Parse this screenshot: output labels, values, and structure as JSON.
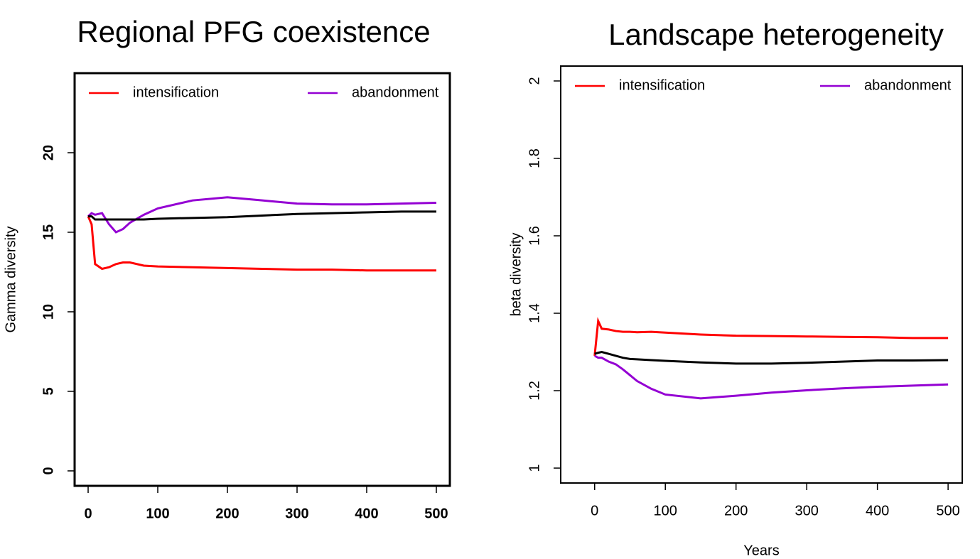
{
  "chart_data": [
    {
      "type": "line",
      "title": "Regional PFG coexistence",
      "y_label": "Gamma diversity",
      "x": [
        0,
        5,
        10,
        20,
        30,
        40,
        50,
        60,
        80,
        100,
        150,
        200,
        250,
        300,
        350,
        400,
        450,
        500
      ],
      "series": [
        {
          "name": "intensification",
          "color": "#ff0000",
          "values": [
            16,
            15.5,
            13,
            12.7,
            12.8,
            13,
            13.1,
            13.1,
            12.9,
            12.85,
            12.8,
            12.75,
            12.7,
            12.65,
            12.65,
            12.6,
            12.6,
            12.6
          ]
        },
        {
          "name": "abandonment",
          "color": "#9400d3",
          "values": [
            16,
            16.2,
            16.1,
            16.2,
            15.5,
            15,
            15.2,
            15.6,
            16.1,
            16.5,
            17,
            17.2,
            17,
            16.8,
            16.75,
            16.75,
            16.8,
            16.85
          ]
        },
        {
          "color": "#000000",
          "values": [
            16,
            16,
            15.8,
            15.8,
            15.8,
            15.8,
            15.8,
            15.8,
            15.8,
            15.85,
            15.9,
            15.95,
            16.05,
            16.15,
            16.2,
            16.25,
            16.3,
            16.3
          ]
        }
      ],
      "xlim": [
        -19.4,
        519.4
      ],
      "xticks": [
        0,
        100,
        200,
        300,
        400,
        500
      ],
      "ylim": [
        -0.94,
        25
      ],
      "yticks": [
        0,
        5,
        10,
        15,
        20
      ]
    },
    {
      "type": "line",
      "title": "Landscape heterogeneity",
      "y_label": "beta diversity",
      "x_label": "Years",
      "x": [
        0,
        5,
        10,
        20,
        30,
        40,
        50,
        60,
        80,
        100,
        150,
        200,
        250,
        300,
        350,
        400,
        450,
        500
      ],
      "series": [
        {
          "name": "intensification",
          "color": "#ff0000",
          "values": [
            1.29,
            1.38,
            1.36,
            1.358,
            1.354,
            1.352,
            1.352,
            1.351,
            1.352,
            1.35,
            1.345,
            1.342,
            1.341,
            1.34,
            1.339,
            1.338,
            1.336,
            1.336
          ]
        },
        {
          "name": "abandonment",
          "color": "#9400d3",
          "values": [
            1.29,
            1.285,
            1.285,
            1.275,
            1.268,
            1.255,
            1.24,
            1.225,
            1.205,
            1.19,
            1.18,
            1.187,
            1.195,
            1.201,
            1.206,
            1.21,
            1.213,
            1.216
          ]
        },
        {
          "color": "#000000",
          "values": [
            1.295,
            1.298,
            1.3,
            1.295,
            1.29,
            1.285,
            1.282,
            1.281,
            1.279,
            1.277,
            1.273,
            1.27,
            1.27,
            1.272,
            1.275,
            1.278,
            1.278,
            1.279
          ]
        }
      ],
      "xlim": [
        -48,
        520
      ],
      "xticks": [
        0,
        100,
        200,
        300,
        400,
        500
      ],
      "ylim": [
        0.9615,
        2.0385
      ],
      "yticks": [
        1.0,
        1.2,
        1.4,
        1.6,
        1.8,
        2.0
      ]
    }
  ]
}
